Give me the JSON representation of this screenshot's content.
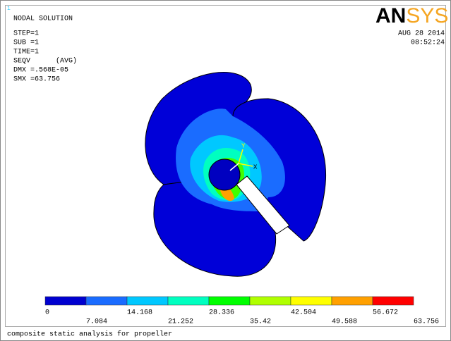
{
  "window_id": "1",
  "header": {
    "title": "NODAL SOLUTION",
    "lines": [
      "STEP=1",
      "SUB =1",
      "TIME=1",
      "SEQV      (AVG)",
      "DMX =.568E-05",
      "SMX =63.756"
    ],
    "logo": {
      "part1": "AN",
      "part2": "SYS"
    },
    "date": "AUG 28 2014",
    "time": "08:52:24"
  },
  "triad": {
    "y": "Y",
    "x": "X"
  },
  "legend": {
    "labels": [
      "0",
      "7.084",
      "14.168",
      "21.252",
      "28.336",
      "35.42",
      "42.504",
      "49.588",
      "56.672",
      "63.756"
    ]
  },
  "footer": "composite static analysis for propeller"
}
